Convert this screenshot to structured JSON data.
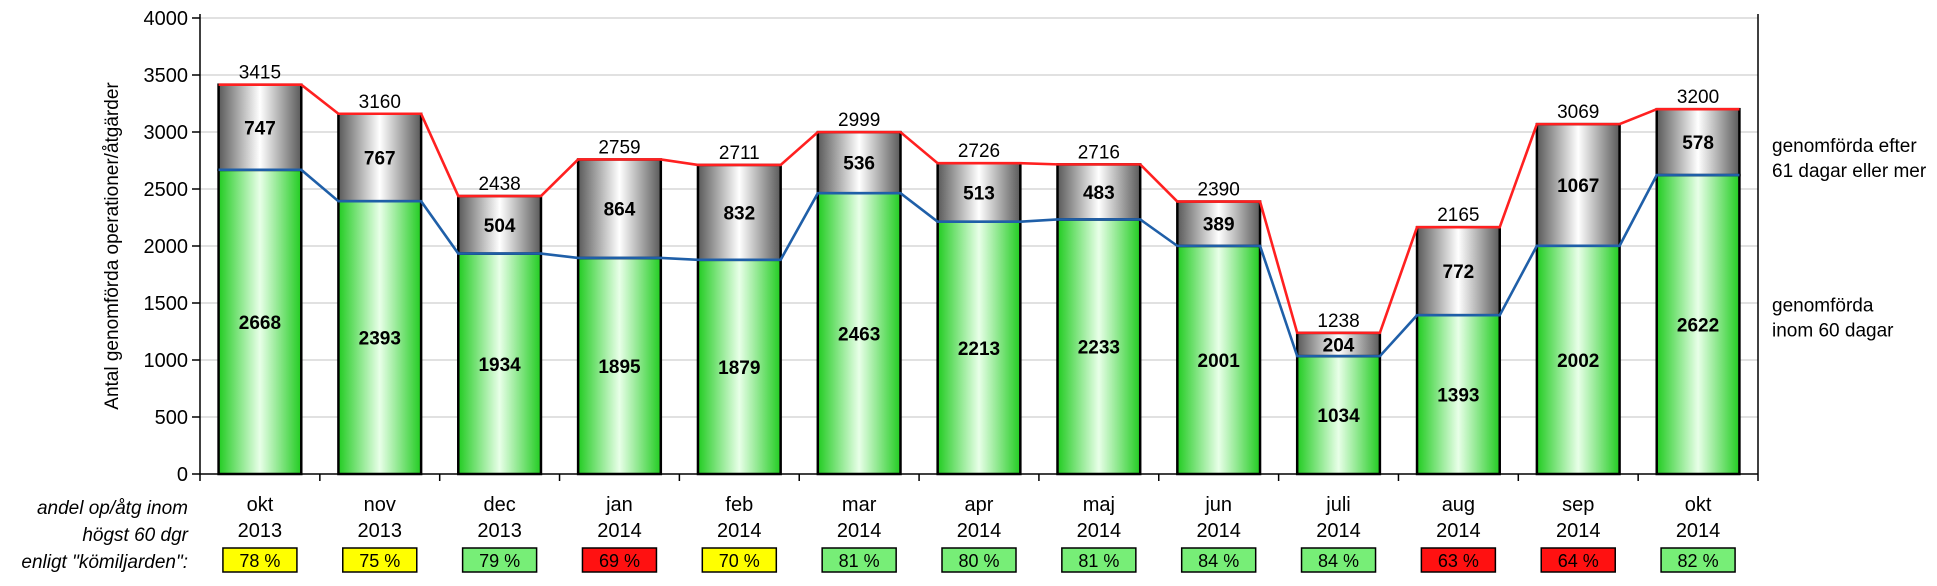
{
  "chart_data": {
    "type": "bar",
    "stacked": true,
    "ylabel": "Antal genomförda operationer/åtgärder",
    "ylim": [
      0,
      4000
    ],
    "yticks": [
      0,
      500,
      1000,
      1500,
      2000,
      2500,
      3000,
      3500,
      4000
    ],
    "grid": true,
    "categories": [
      {
        "month": "okt",
        "year": "2013"
      },
      {
        "month": "nov",
        "year": "2013"
      },
      {
        "month": "dec",
        "year": "2013"
      },
      {
        "month": "jan",
        "year": "2014"
      },
      {
        "month": "feb",
        "year": "2014"
      },
      {
        "month": "mar",
        "year": "2014"
      },
      {
        "month": "apr",
        "year": "2014"
      },
      {
        "month": "maj",
        "year": "2014"
      },
      {
        "month": "jun",
        "year": "2014"
      },
      {
        "month": "juli",
        "year": "2014"
      },
      {
        "month": "aug",
        "year": "2014"
      },
      {
        "month": "sep",
        "year": "2014"
      },
      {
        "month": "okt",
        "year": "2014"
      }
    ],
    "series": [
      {
        "name": "genomförda inom 60 dagar",
        "legend_lines": [
          "genomförda",
          "inom 60 dagar"
        ],
        "color": "#33dd33",
        "line_color": "#1f5fa8",
        "values": [
          2668,
          2393,
          1934,
          1895,
          1879,
          2463,
          2213,
          2233,
          2001,
          1034,
          1393,
          2002,
          2622
        ]
      },
      {
        "name": "genomförda efter 61 dagar eller mer",
        "legend_lines": [
          "genomförda efter",
          "61 dagar eller mer"
        ],
        "color": "#8a8a8a",
        "line_color": "#ff2020",
        "values": [
          747,
          767,
          504,
          864,
          832,
          536,
          513,
          483,
          389,
          204,
          772,
          1067,
          578
        ]
      }
    ],
    "totals": [
      3415,
      3160,
      2438,
      2759,
      2711,
      2999,
      2726,
      2716,
      2390,
      1238,
      2165,
      3069,
      3200
    ],
    "share_row": {
      "label_lines": [
        "andel op/åtg inom",
        "högst 60 dgr",
        "enligt \"kömiljarden\":"
      ],
      "values": [
        "78 %",
        "75 %",
        "79 %",
        "69 %",
        "70 %",
        "81 %",
        "80 %",
        "81 %",
        "84 %",
        "84 %",
        "63 %",
        "64 %",
        "82 %"
      ],
      "status": [
        "yellow",
        "yellow",
        "green",
        "red",
        "yellow",
        "green",
        "green",
        "green",
        "green",
        "green",
        "red",
        "red",
        "green"
      ],
      "status_colors": {
        "yellow": "#ffff00",
        "green": "#77ee77",
        "red": "#ff1111"
      }
    }
  }
}
